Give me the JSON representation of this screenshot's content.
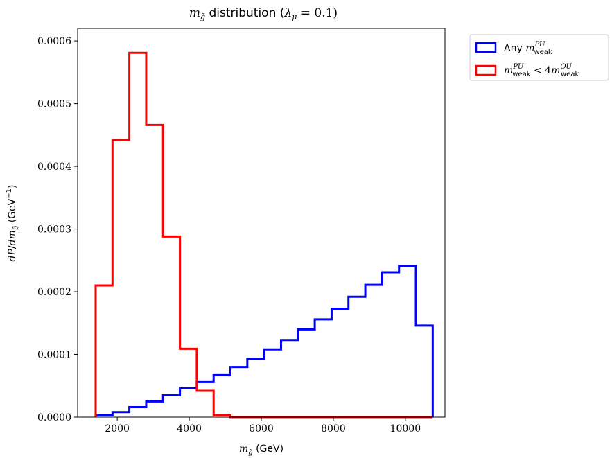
{
  "chart_data": {
    "type": "histogram",
    "title": "m_g̃ distribution (λ_μ = 0.1)",
    "xlabel": "m_g̃ (GeV)",
    "ylabel": "dP/dm_g̃ (GeV⁻¹)",
    "xlim": [
      900,
      11100
    ],
    "ylim": [
      0,
      0.00062
    ],
    "xticks": [
      2000,
      4000,
      6000,
      8000,
      10000
    ],
    "xtick_labels": [
      "2000",
      "4000",
      "6000",
      "8000",
      "10000"
    ],
    "yticks": [
      0.0,
      0.0001,
      0.0002,
      0.0003,
      0.0004,
      0.0005,
      0.0006
    ],
    "ytick_labels": [
      "0.0000",
      "0.0001",
      "0.0002",
      "0.0003",
      "0.0004",
      "0.0005",
      "0.0006"
    ],
    "grid": false,
    "legend_position": "outside-top-right",
    "series": [
      {
        "name": "Any m_weak^PU",
        "color": "#0000ff",
        "bin_edges": [
          1400,
          1868,
          2336,
          2804,
          3272,
          3740,
          4208,
          4676,
          5144,
          5612,
          6080,
          6548,
          7016,
          7484,
          7952,
          8420,
          8888,
          9356,
          9824,
          10292,
          10760
        ],
        "values": [
          3e-06,
          8e-06,
          1.6e-05,
          2.5e-05,
          3.5e-05,
          4.6e-05,
          5.6e-05,
          6.7e-05,
          8e-05,
          9.3e-05,
          0.000108,
          0.000123,
          0.00014,
          0.000156,
          0.000173,
          0.000192,
          0.000211,
          0.000231,
          0.000241,
          0.000146
        ]
      },
      {
        "name": "m_weak^PU < 4 m_weak^OU",
        "color": "#ff0000",
        "bin_edges": [
          1400,
          1868,
          2336,
          2804,
          3272,
          3740,
          4208,
          4676,
          5144,
          5612,
          6080,
          6548,
          7016,
          7484,
          7952,
          8420,
          8888,
          9356,
          9824,
          10292,
          10760
        ],
        "values": [
          0.00021,
          0.000442,
          0.000581,
          0.000466,
          0.000288,
          0.000109,
          4.2e-05,
          3e-06,
          0.0,
          0.0,
          0.0,
          0.0,
          0.0,
          0.0,
          0.0,
          0.0,
          0.0,
          0.0,
          0.0,
          0.0
        ]
      }
    ]
  }
}
